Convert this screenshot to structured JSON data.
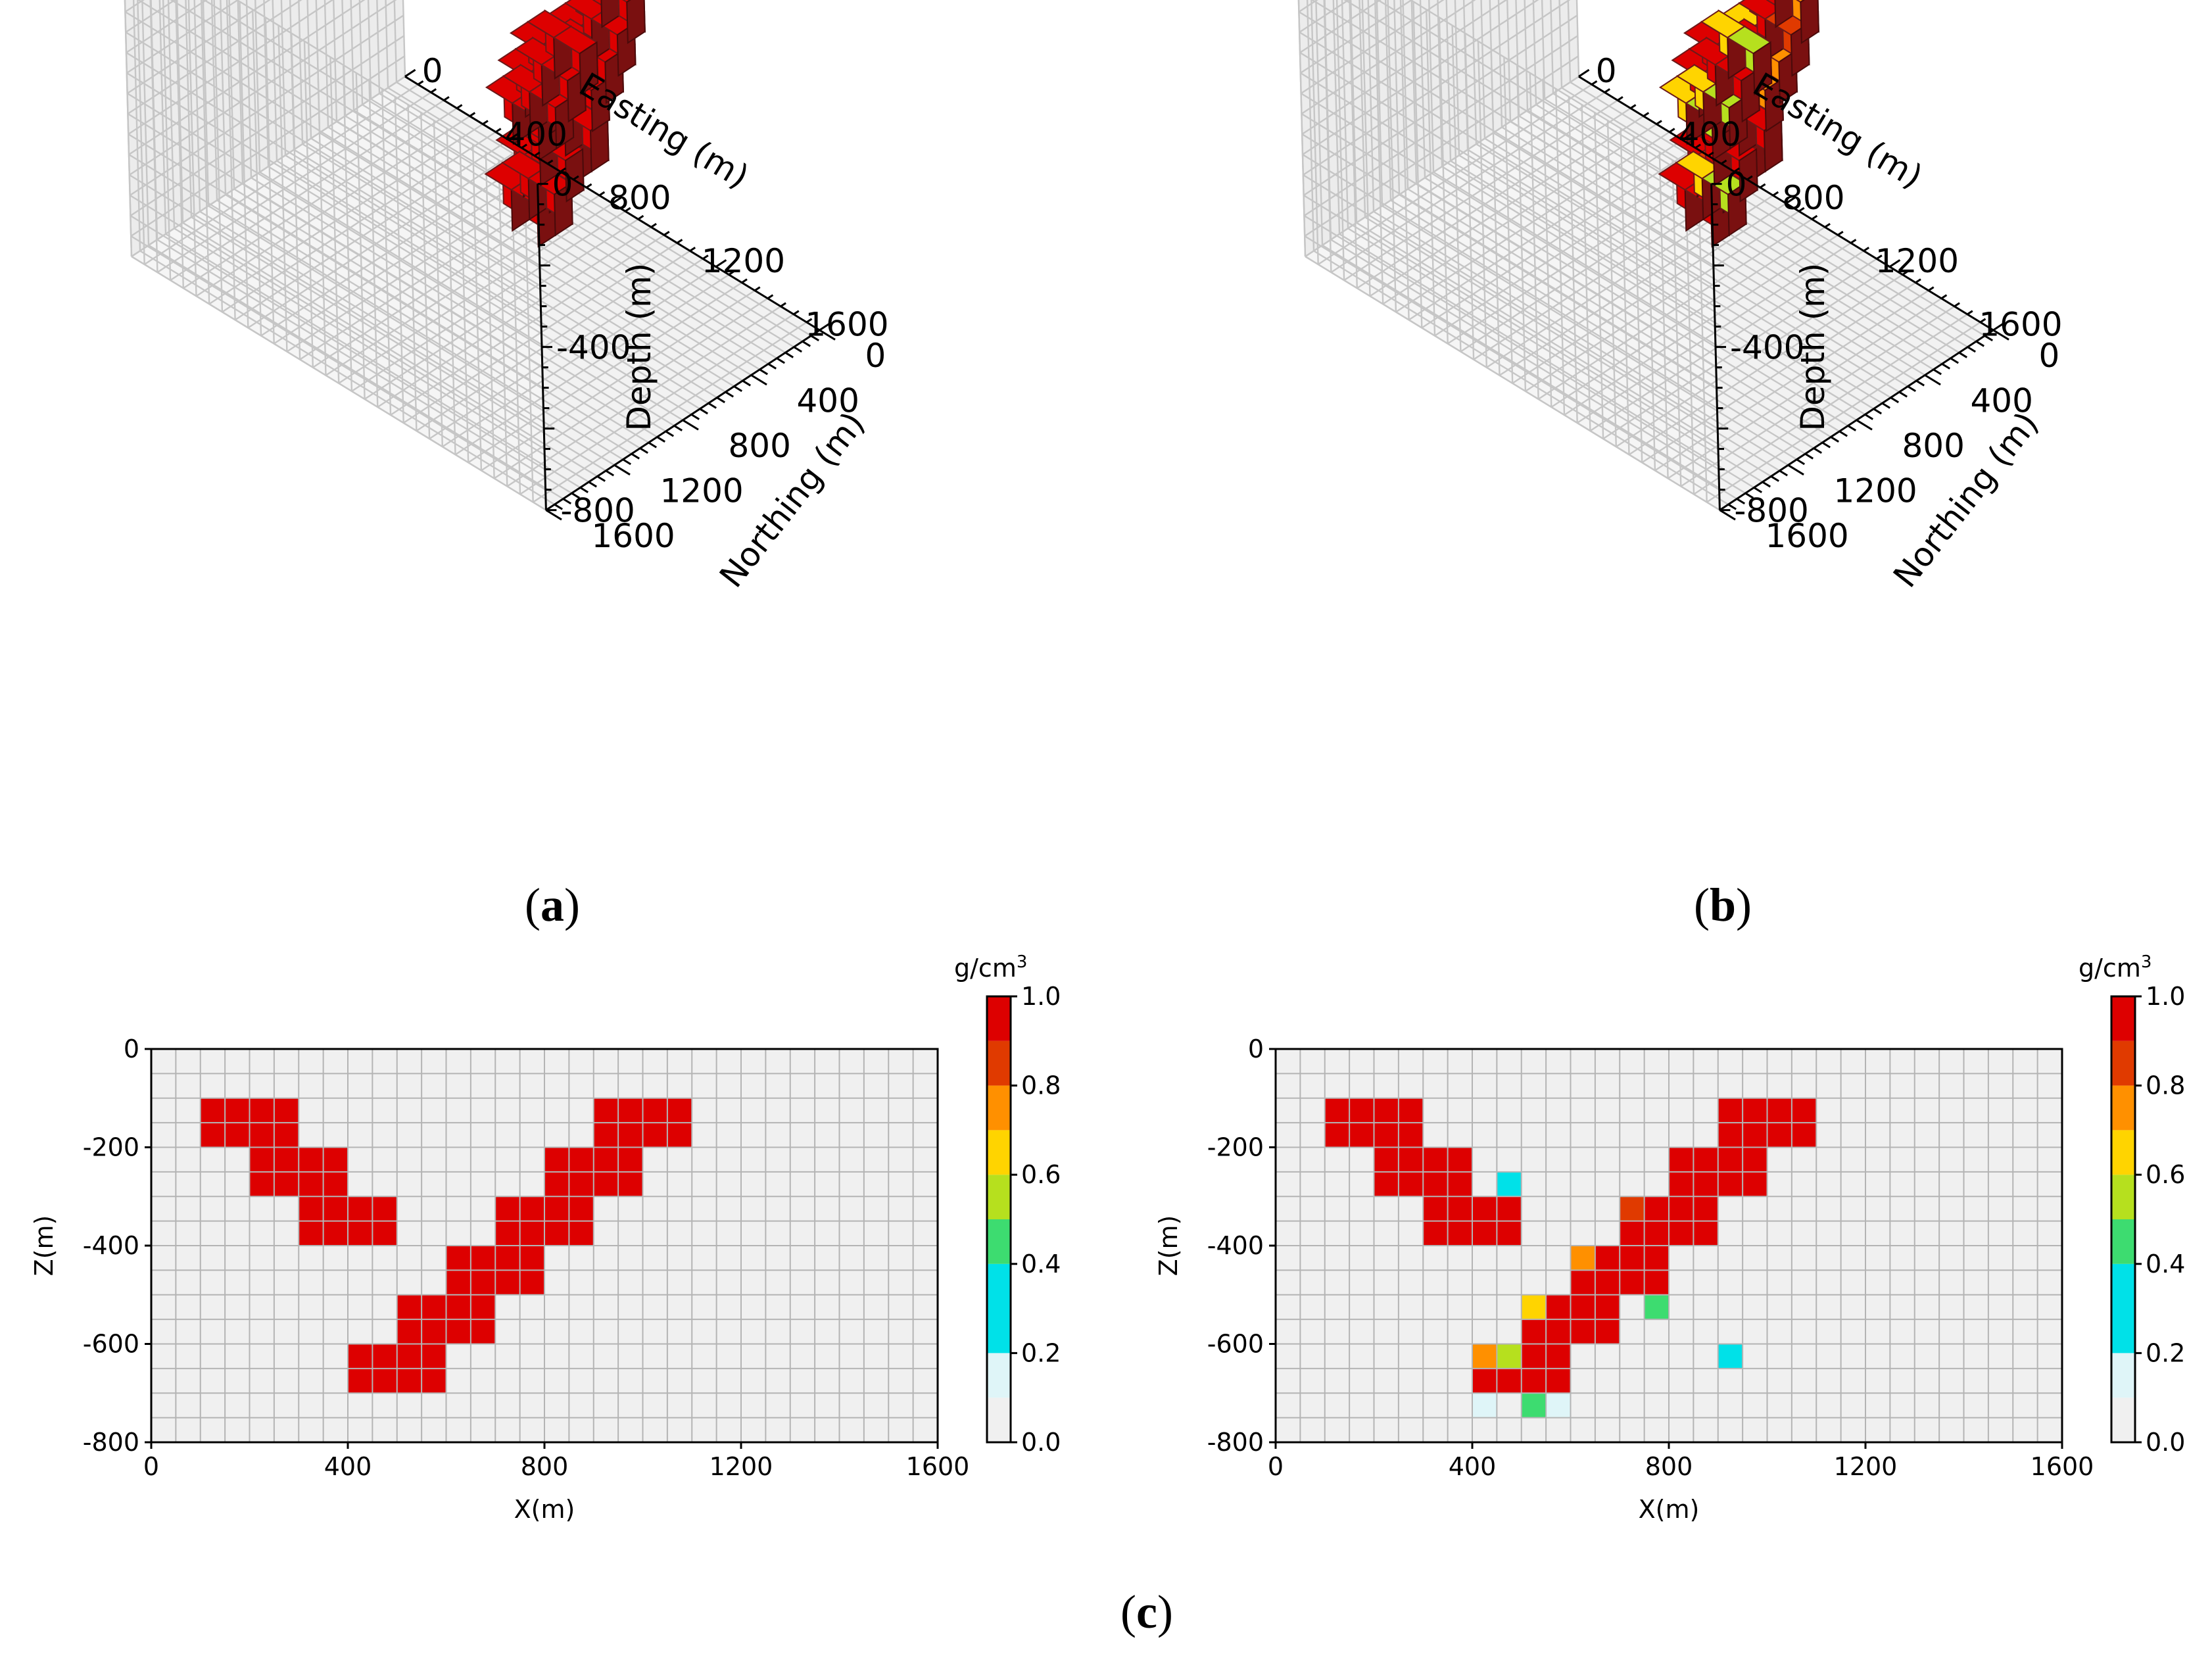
{
  "captions": {
    "a": "a",
    "b": "b",
    "c": "c"
  },
  "colors": {
    "red": "#e00000",
    "bg": "#f0f0f0",
    "grid": "#b0b0b0"
  },
  "chart_data": [
    {
      "id": "a",
      "type": "voxel3d",
      "xlabel": "Easting (m)",
      "ylabel": "Northing (m)",
      "zlabel": "Depth (m)",
      "xticks": [
        "0",
        "400",
        "800",
        "1200",
        "1600"
      ],
      "yticks": [
        "0",
        "400",
        "800",
        "1200",
        "1600"
      ],
      "zticks": [
        "0",
        "-400",
        "-800"
      ],
      "value_per_voxel": 1.0
    },
    {
      "id": "b",
      "type": "voxel3d",
      "xlabel": "Easting (m)",
      "ylabel": "Northing (m)",
      "zlabel": "Depth (m)",
      "xticks": [
        "0",
        "400",
        "800",
        "1200",
        "1600"
      ],
      "yticks": [
        "0",
        "400",
        "800",
        "1200",
        "1600"
      ],
      "zticks": [
        "0",
        "-400",
        "-800"
      ]
    },
    {
      "id": "c-left",
      "type": "heatmap",
      "xlabel": "X(m)",
      "ylabel": "Z(m)",
      "xlim": [
        0,
        1600
      ],
      "ylim": [
        -800,
        0
      ],
      "cell_size": 100,
      "xticks": [
        "0",
        "400",
        "800",
        "1200",
        "1600"
      ],
      "yticks": [
        "0",
        "-200",
        "-400",
        "-600",
        "-800"
      ],
      "colorbar": {
        "label": "g/cm",
        "label_sup": "3",
        "ticks": [
          "1.0",
          "0.8",
          "0.6",
          "0.4",
          "0.2",
          "0.0"
        ]
      },
      "cells": [
        {
          "x": 100,
          "z": -100,
          "v": 1.0
        },
        {
          "x": 200,
          "z": -100,
          "v": 1.0
        },
        {
          "x": 200,
          "z": -200,
          "v": 1.0
        },
        {
          "x": 300,
          "z": -200,
          "v": 1.0
        },
        {
          "x": 300,
          "z": -300,
          "v": 1.0
        },
        {
          "x": 400,
          "z": -300,
          "v": 1.0
        },
        {
          "x": 900,
          "z": -100,
          "v": 1.0
        },
        {
          "x": 1000,
          "z": -100,
          "v": 1.0
        },
        {
          "x": 800,
          "z": -200,
          "v": 1.0
        },
        {
          "x": 900,
          "z": -200,
          "v": 1.0
        },
        {
          "x": 700,
          "z": -300,
          "v": 1.0
        },
        {
          "x": 800,
          "z": -300,
          "v": 1.0
        },
        {
          "x": 600,
          "z": -400,
          "v": 1.0
        },
        {
          "x": 700,
          "z": -400,
          "v": 1.0
        },
        {
          "x": 500,
          "z": -500,
          "v": 1.0
        },
        {
          "x": 600,
          "z": -500,
          "v": 1.0
        },
        {
          "x": 400,
          "z": -600,
          "v": 1.0
        },
        {
          "x": 500,
          "z": -600,
          "v": 1.0
        }
      ]
    },
    {
      "id": "c-right",
      "type": "heatmap",
      "xlabel": "X(m)",
      "ylabel": "Z(m)",
      "xlim": [
        0,
        1600
      ],
      "ylim": [
        -800,
        0
      ],
      "cell_size": 100,
      "xticks": [
        "0",
        "400",
        "800",
        "1200",
        "1600"
      ],
      "yticks": [
        "0",
        "-200",
        "-400",
        "-600",
        "-800"
      ],
      "colorbar": {
        "label": "g/cm",
        "label_sup": "3",
        "ticks": [
          "1.0",
          "0.8",
          "0.6",
          "0.4",
          "0.2",
          "0.0"
        ]
      },
      "cells": [
        {
          "x": 100,
          "z": -100,
          "v": 1.0
        },
        {
          "x": 200,
          "z": -100,
          "v": 1.0
        },
        {
          "x": 200,
          "z": -200,
          "v": 1.0
        },
        {
          "x": 300,
          "z": -200,
          "v": 1.0
        },
        {
          "x": 300,
          "z": -300,
          "v": 1.0
        },
        {
          "x": 400,
          "z": -300,
          "v": 1.0
        },
        {
          "x": 900,
          "z": -100,
          "v": 1.0
        },
        {
          "x": 1000,
          "z": -100,
          "v": 1.0
        },
        {
          "x": 800,
          "z": -200,
          "v": 1.0
        },
        {
          "x": 900,
          "z": -200,
          "v": 1.0
        },
        {
          "x": 700,
          "z": -300,
          "v": 1.0
        },
        {
          "x": 800,
          "z": -300,
          "v": 1.0
        },
        {
          "x": 600,
          "z": -400,
          "v": 1.0
        },
        {
          "x": 700,
          "z": -400,
          "v": 1.0
        },
        {
          "x": 500,
          "z": -500,
          "v": 1.0
        },
        {
          "x": 600,
          "z": -500,
          "v": 1.0
        },
        {
          "x": 400,
          "z": -600,
          "v": 1.0
        },
        {
          "x": 500,
          "z": -600,
          "v": 1.0
        },
        {
          "x": 450,
          "z": -250,
          "v": 0.3
        },
        {
          "x": 700,
          "z": -300,
          "v": 0.85
        },
        {
          "x": 600,
          "z": -400,
          "v": 0.75
        },
        {
          "x": 500,
          "z": -500,
          "v": 0.65
        },
        {
          "x": 750,
          "z": -500,
          "v": 0.45
        },
        {
          "x": 400,
          "z": -600,
          "v": 0.75
        },
        {
          "x": 450,
          "z": -600,
          "v": 0.55
        },
        {
          "x": 900,
          "z": -600,
          "v": 0.3
        },
        {
          "x": 400,
          "z": -700,
          "v": 0.15
        },
        {
          "x": 500,
          "z": -700,
          "v": 0.45
        },
        {
          "x": 550,
          "z": -700,
          "v": 0.15
        }
      ]
    }
  ]
}
